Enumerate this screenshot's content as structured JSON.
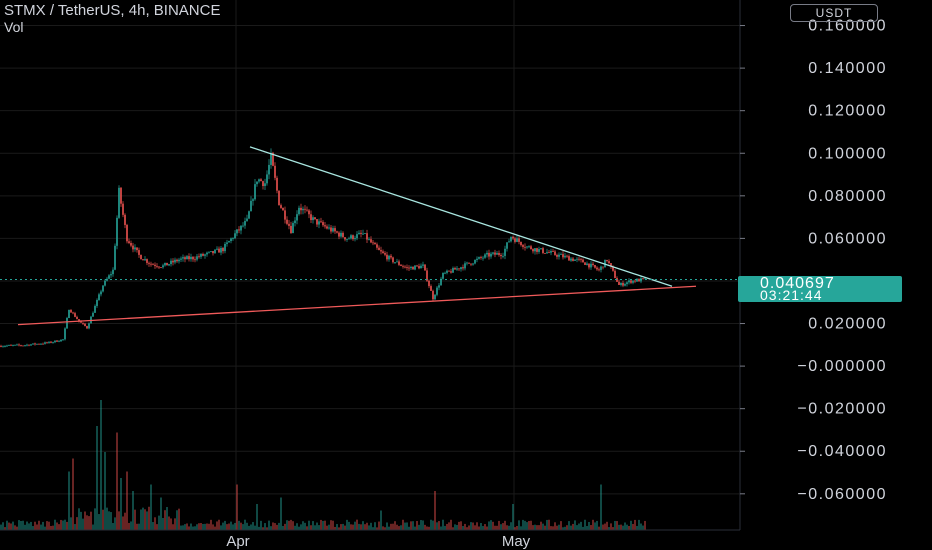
{
  "header": {
    "symbol_line": "STMX / TetherUS, 4h, BINANCE",
    "volume_label": "Vol",
    "currency_button": "USDT"
  },
  "last_price": {
    "value": "0.040697",
    "countdown": "03:21:44",
    "level": 0.040697
  },
  "colors": {
    "background": "#000000",
    "up": "#26a69a",
    "down": "#ef5350",
    "resistance_line": "#a8e6e0",
    "support_line": "#f05a5a",
    "grid": "#1a1a1a",
    "axis_text": "#d1d4dc"
  },
  "chart_data": {
    "type": "candlestick",
    "title": "STMX / TetherUS, 4h, BINANCE",
    "y_axis": {
      "ticks": [
        0.16,
        0.14,
        0.12,
        0.1,
        0.08,
        0.06,
        0.04,
        0.02,
        0.0,
        -0.02,
        -0.04,
        -0.06
      ],
      "tick_labels": [
        "0.160000",
        "0.140000",
        "0.120000",
        "0.100000",
        "0.080000",
        "0.060000",
        "0.020000",
        "−0.000000",
        "−0.020000",
        "−0.040000",
        "−0.060000"
      ],
      "label_ticks": [
        0.16,
        0.14,
        0.12,
        0.1,
        0.08,
        0.06,
        0.02,
        0.0,
        -0.02,
        -0.04,
        -0.06
      ],
      "range": [
        -0.077,
        0.172
      ]
    },
    "x_axis": {
      "labels": [
        "Apr",
        "May"
      ],
      "label_bar_index": [
        104,
        243
      ],
      "grid_bar_index": [
        118,
        257
      ]
    },
    "bar_count": 323,
    "price_path": [
      [
        0,
        0.0095
      ],
      [
        12,
        0.0098
      ],
      [
        25,
        0.011
      ],
      [
        32,
        0.0125
      ],
      [
        35,
        0.027
      ],
      [
        40,
        0.021
      ],
      [
        44,
        0.018
      ],
      [
        48,
        0.028
      ],
      [
        52,
        0.038
      ],
      [
        57,
        0.045
      ],
      [
        60,
        0.082
      ],
      [
        64,
        0.06
      ],
      [
        70,
        0.052
      ],
      [
        76,
        0.048
      ],
      [
        82,
        0.047
      ],
      [
        90,
        0.05
      ],
      [
        98,
        0.051
      ],
      [
        106,
        0.053
      ],
      [
        112,
        0.055
      ],
      [
        118,
        0.062
      ],
      [
        124,
        0.068
      ],
      [
        129,
        0.088
      ],
      [
        133,
        0.086
      ],
      [
        136,
        0.098
      ],
      [
        140,
        0.077
      ],
      [
        146,
        0.064
      ],
      [
        150,
        0.075
      ],
      [
        158,
        0.068
      ],
      [
        166,
        0.064
      ],
      [
        174,
        0.06
      ],
      [
        182,
        0.062
      ],
      [
        190,
        0.054
      ],
      [
        196,
        0.05
      ],
      [
        204,
        0.046
      ],
      [
        212,
        0.047
      ],
      [
        217,
        0.032
      ],
      [
        222,
        0.043
      ],
      [
        232,
        0.047
      ],
      [
        244,
        0.052
      ],
      [
        252,
        0.053
      ],
      [
        256,
        0.061
      ],
      [
        264,
        0.056
      ],
      [
        272,
        0.054
      ],
      [
        280,
        0.052
      ],
      [
        292,
        0.049
      ],
      [
        300,
        0.045
      ],
      [
        304,
        0.05
      ],
      [
        310,
        0.038
      ],
      [
        316,
        0.04
      ],
      [
        323,
        0.0407
      ]
    ],
    "volume": {
      "scale_max": 100,
      "spikes": [
        [
          34,
          45
        ],
        [
          36,
          55
        ],
        [
          48,
          80
        ],
        [
          50,
          100
        ],
        [
          52,
          60
        ],
        [
          58,
          75
        ],
        [
          60,
          40
        ],
        [
          63,
          45
        ],
        [
          66,
          30
        ],
        [
          75,
          35
        ],
        [
          80,
          25
        ],
        [
          118,
          35
        ],
        [
          128,
          20
        ],
        [
          140,
          25
        ],
        [
          190,
          15
        ],
        [
          217,
          30
        ],
        [
          256,
          20
        ],
        [
          300,
          35
        ]
      ]
    },
    "trendlines": [
      {
        "kind": "resistance",
        "from": [
          125,
          0.103
        ],
        "to": [
          336,
          0.0375
        ]
      },
      {
        "kind": "support",
        "from": [
          9,
          0.0195
        ],
        "to": [
          348,
          0.0375
        ]
      }
    ]
  }
}
